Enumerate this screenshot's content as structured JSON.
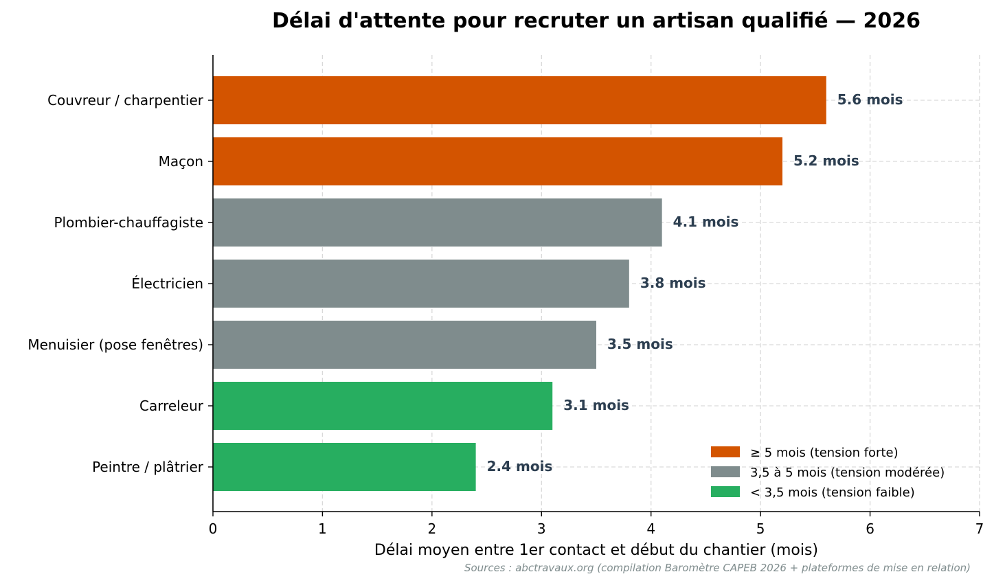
{
  "chart_data": {
    "type": "bar",
    "orientation": "horizontal",
    "title": "Délai d'attente pour recruter un artisan qualifié — 2026",
    "xlabel": "Délai moyen entre 1er contact et début du chantier (mois)",
    "ylabel": "",
    "xlim": [
      0,
      7
    ],
    "xticks": [
      "0",
      "1",
      "2",
      "3",
      "4",
      "5",
      "6",
      "7"
    ],
    "grid": true,
    "legend_position": "bottom-right",
    "categories": [
      "Couvreur / charpentier",
      "Maçon",
      "Plombier-chauffagiste",
      "Électricien",
      "Menuisier (pose fenêtres)",
      "Carreleur",
      "Peintre / plâtrier"
    ],
    "values": [
      5.6,
      5.2,
      4.1,
      3.8,
      3.5,
      3.1,
      2.4
    ],
    "value_labels": [
      "5.6 mois",
      "5.2 mois",
      "4.1 mois",
      "3.8 mois",
      "3.5 mois",
      "3.1 mois",
      "2.4 mois"
    ],
    "bar_groups": [
      "high",
      "high",
      "medium",
      "medium",
      "medium",
      "low",
      "low"
    ],
    "legend": [
      {
        "key": "high",
        "label": "≥ 5 mois (tension forte)",
        "color": "#d35400"
      },
      {
        "key": "medium",
        "label": "3,5 à 5 mois (tension modérée)",
        "color": "#7f8c8d"
      },
      {
        "key": "low",
        "label": "< 3,5 mois (tension faible)",
        "color": "#27ae60"
      }
    ],
    "source": "Sources : abctravaux.org (compilation Baromètre CAPEB 2026 + plateformes de mise en relation)"
  }
}
